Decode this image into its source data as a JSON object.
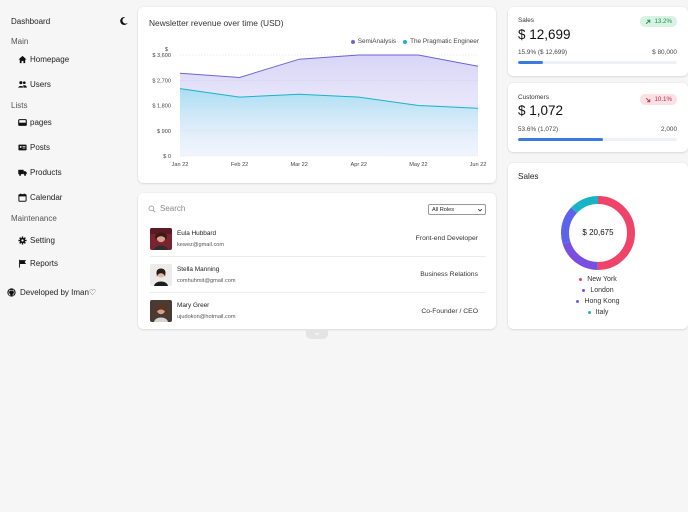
{
  "sidebar": {
    "title": "Dashboard",
    "sections": [
      {
        "label": "Main",
        "items": [
          {
            "label": "Homepage",
            "icon": "home-icon"
          },
          {
            "label": "Users",
            "icon": "users-icon"
          }
        ]
      },
      {
        "label": "Lists",
        "items": [
          {
            "label": "pages",
            "icon": "inbox-icon"
          },
          {
            "label": "Posts",
            "icon": "id-card-icon"
          },
          {
            "label": "Products",
            "icon": "truck-icon"
          },
          {
            "label": "Calendar",
            "icon": "calendar-icon"
          }
        ]
      },
      {
        "label": "Maintenance",
        "items": [
          {
            "label": "Setting",
            "icon": "gear-icon"
          },
          {
            "label": "Reports",
            "icon": "flag-icon"
          }
        ]
      }
    ],
    "footer": "Developed by Iman♡"
  },
  "revenue": {
    "title": "Newsletter revenue over time (USD)"
  },
  "chart_data": {
    "type": "area",
    "title": "Newsletter revenue over time (USD)",
    "x": [
      "Jan 22",
      "Feb 22",
      "Mar 22",
      "Apr 22",
      "May 22",
      "Jun 22"
    ],
    "y_unit": "$",
    "y_ticks": [
      "$ 0",
      "$ 900",
      "$ 1,800",
      "$ 2,700",
      "$ 3,600"
    ],
    "ylim": [
      0,
      3600
    ],
    "grid": true,
    "legend": "top-right",
    "series": [
      {
        "name": "SemiAnalysis",
        "color": "#6e63d6",
        "values": [
          2950,
          2800,
          3450,
          3600,
          3600,
          3200
        ]
      },
      {
        "name": "The Pragmatic Engineer",
        "color": "#19b3c8",
        "values": [
          2400,
          2100,
          2200,
          2100,
          1800,
          1700
        ]
      }
    ]
  },
  "users": {
    "search_placeholder": "Search",
    "role_filter": "All Roles",
    "rows": [
      {
        "name": "Eula Hubbard",
        "email": "kewez@gmail.com",
        "role": "Front-end Developer"
      },
      {
        "name": "Stella Manning",
        "email": "comhuhmit@gmail.com",
        "role": "Business Relations"
      },
      {
        "name": "Mary Greer",
        "email": "ujudokon@hotmail.com",
        "role": "Co-Founder / CEO"
      }
    ]
  },
  "sales_stat": {
    "label": "Sales",
    "value": "$ 12,699",
    "badge": "13.2%",
    "badge_color": "#1a8a4a",
    "progress_text": "15.9% ($ 12,699)",
    "target": "$ 80,000",
    "progress": 0.159
  },
  "customers_stat": {
    "label": "Customers",
    "value": "$ 1,072",
    "badge": "10.1%",
    "badge_color": "#c62b45",
    "progress_text": "53.6% (1,072)",
    "target": "2,000",
    "progress": 0.536
  },
  "sales_donut": {
    "title": "Sales",
    "total": "$ 20,675",
    "segments": [
      {
        "label": "New York",
        "color": "#f0436a",
        "share": 0.5
      },
      {
        "label": "London",
        "color": "#7a4fe0",
        "share": 0.2
      },
      {
        "label": "Hong Kong",
        "color": "#5b63ea",
        "share": 0.17
      },
      {
        "label": "Italy",
        "color": "#19b3c8",
        "share": 0.13
      }
    ]
  }
}
